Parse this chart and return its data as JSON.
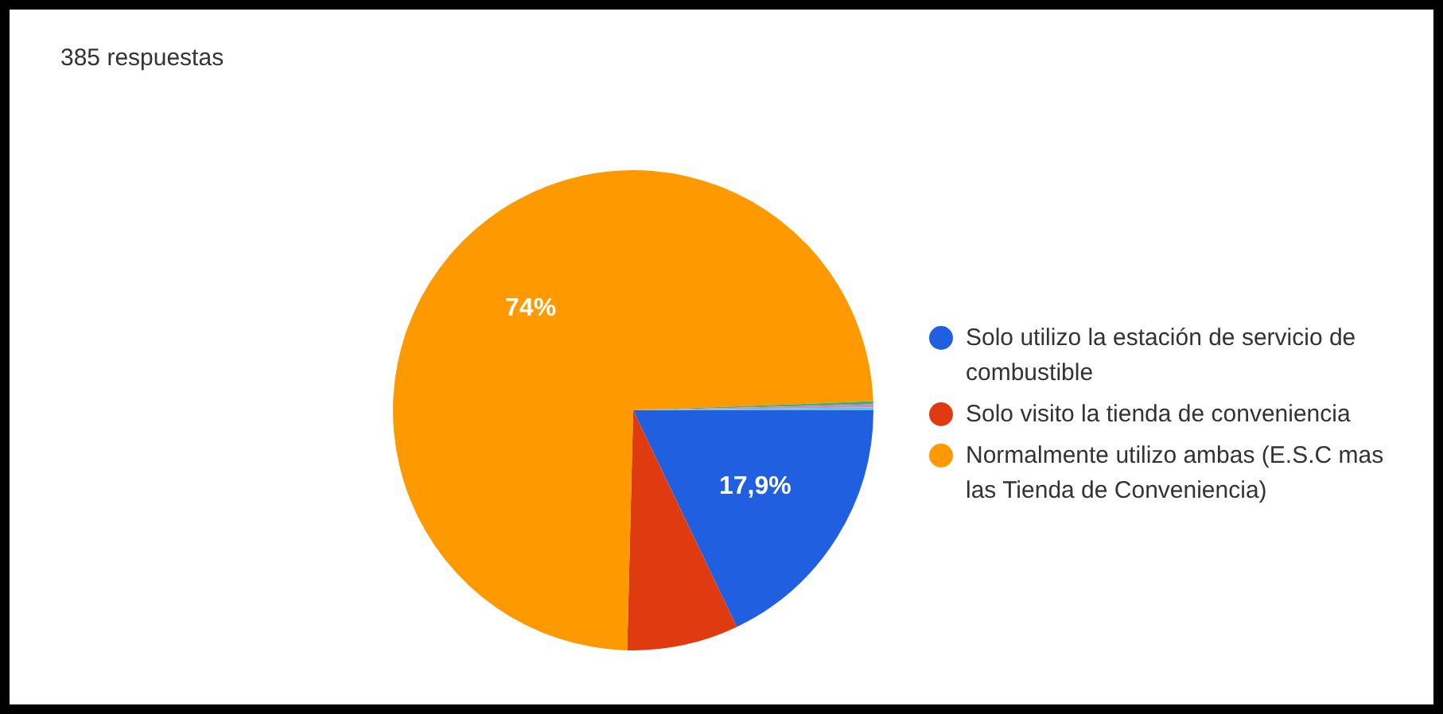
{
  "chart_data": {
    "type": "pie",
    "title": "385 respuestas",
    "categories": [
      "Solo utilizo la estación de servicio de combustible",
      "Solo visito la tienda de conveniencia",
      "Normalmente utilizo ambas (E.S.C mas las Tienda de Conveniencia)",
      null,
      null,
      null
    ],
    "values": [
      17.9,
      7.5,
      74,
      0.2,
      0.2,
      0.2
    ],
    "colors": [
      "#1f5fe0",
      "#e03a10",
      "#ff9900",
      "#3cb371",
      "#e27ec8",
      "#5bc8e8"
    ],
    "value_labels": [
      "17,9%",
      null,
      "74%",
      null,
      null,
      null
    ],
    "legend": "right"
  }
}
